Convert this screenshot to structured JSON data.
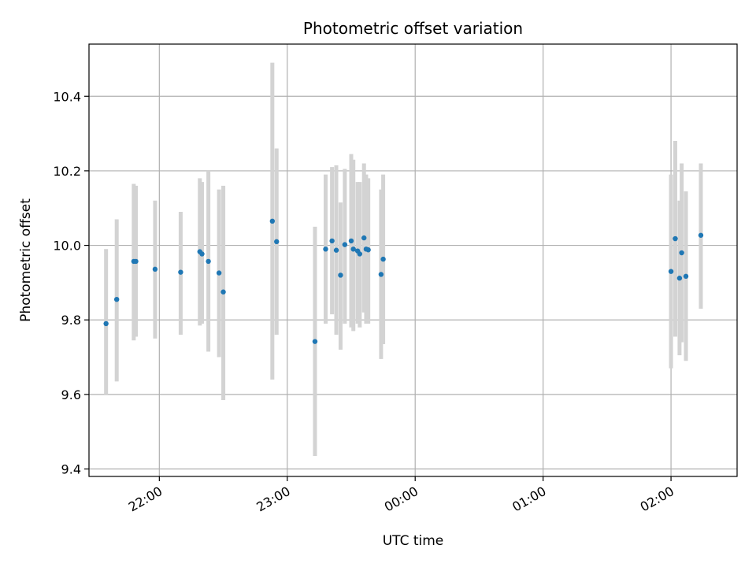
{
  "chart_data": {
    "type": "scatter",
    "title": "Photometric offset variation",
    "xlabel": "UTC time",
    "ylabel": "Photometric offset",
    "x_axis_kind": "time",
    "xlim": [
      "21:27",
      "02:31"
    ],
    "ylim": [
      9.38,
      10.54
    ],
    "x_ticks": [
      "22:00",
      "23:00",
      "00:00",
      "01:00",
      "02:00"
    ],
    "y_ticks": [
      9.4,
      9.6,
      9.8,
      10.0,
      10.2,
      10.4
    ],
    "grid": true,
    "legend": "none",
    "colors": {
      "points": "#1f77b4",
      "error_bars": "#d3d3d3",
      "grid": "#b0b0b0"
    },
    "points": [
      {
        "x": "21:35",
        "y": 9.79,
        "ylow": 9.6,
        "yhigh": 9.99
      },
      {
        "x": "21:40",
        "y": 9.855,
        "ylow": 9.635,
        "yhigh": 10.07
      },
      {
        "x": "21:48",
        "y": 9.957,
        "ylow": 9.745,
        "yhigh": 10.165
      },
      {
        "x": "21:49",
        "y": 9.957,
        "ylow": 9.755,
        "yhigh": 10.16
      },
      {
        "x": "21:58",
        "y": 9.936,
        "ylow": 9.75,
        "yhigh": 10.12
      },
      {
        "x": "22:10",
        "y": 9.928,
        "ylow": 9.76,
        "yhigh": 10.09
      },
      {
        "x": "22:19",
        "y": 9.983,
        "ylow": 9.785,
        "yhigh": 10.18
      },
      {
        "x": "22:20",
        "y": 9.977,
        "ylow": 9.79,
        "yhigh": 10.17
      },
      {
        "x": "22:23",
        "y": 9.957,
        "ylow": 9.715,
        "yhigh": 10.2
      },
      {
        "x": "22:28",
        "y": 9.926,
        "ylow": 9.7,
        "yhigh": 10.15
      },
      {
        "x": "22:30",
        "y": 9.875,
        "ylow": 9.585,
        "yhigh": 10.16
      },
      {
        "x": "22:53",
        "y": 10.065,
        "ylow": 9.64,
        "yhigh": 10.49
      },
      {
        "x": "22:55",
        "y": 10.01,
        "ylow": 9.76,
        "yhigh": 10.26
      },
      {
        "x": "23:13",
        "y": 9.742,
        "ylow": 9.435,
        "yhigh": 10.05
      },
      {
        "x": "23:18",
        "y": 9.99,
        "ylow": 9.79,
        "yhigh": 10.19
      },
      {
        "x": "23:21",
        "y": 10.012,
        "ylow": 9.815,
        "yhigh": 10.21
      },
      {
        "x": "23:23",
        "y": 9.987,
        "ylow": 9.76,
        "yhigh": 10.215
      },
      {
        "x": "23:25",
        "y": 9.92,
        "ylow": 9.72,
        "yhigh": 10.115
      },
      {
        "x": "23:27",
        "y": 10.002,
        "ylow": 9.79,
        "yhigh": 10.205
      },
      {
        "x": "23:30",
        "y": 10.012,
        "ylow": 9.78,
        "yhigh": 10.245
      },
      {
        "x": "23:31",
        "y": 9.99,
        "ylow": 9.77,
        "yhigh": 10.23
      },
      {
        "x": "23:33",
        "y": 9.985,
        "ylow": 9.79,
        "yhigh": 10.17
      },
      {
        "x": "23:34",
        "y": 9.977,
        "ylow": 9.78,
        "yhigh": 10.17
      },
      {
        "x": "23:36",
        "y": 10.02,
        "ylow": 9.82,
        "yhigh": 10.22
      },
      {
        "x": "23:37",
        "y": 9.99,
        "ylow": 9.79,
        "yhigh": 10.19
      },
      {
        "x": "23:38",
        "y": 9.988,
        "ylow": 9.79,
        "yhigh": 10.18
      },
      {
        "x": "23:44",
        "y": 9.922,
        "ylow": 9.695,
        "yhigh": 10.15
      },
      {
        "x": "23:45",
        "y": 9.963,
        "ylow": 9.735,
        "yhigh": 10.19
      },
      {
        "x": "02:00",
        "y": 9.93,
        "ylow": 9.67,
        "yhigh": 10.19
      },
      {
        "x": "02:02",
        "y": 10.018,
        "ylow": 9.755,
        "yhigh": 10.28
      },
      {
        "x": "02:04",
        "y": 9.912,
        "ylow": 9.705,
        "yhigh": 10.12
      },
      {
        "x": "02:05",
        "y": 9.98,
        "ylow": 9.74,
        "yhigh": 10.22
      },
      {
        "x": "02:07",
        "y": 9.917,
        "ylow": 9.69,
        "yhigh": 10.145
      },
      {
        "x": "02:14",
        "y": 10.027,
        "ylow": 9.83,
        "yhigh": 10.22
      }
    ]
  }
}
